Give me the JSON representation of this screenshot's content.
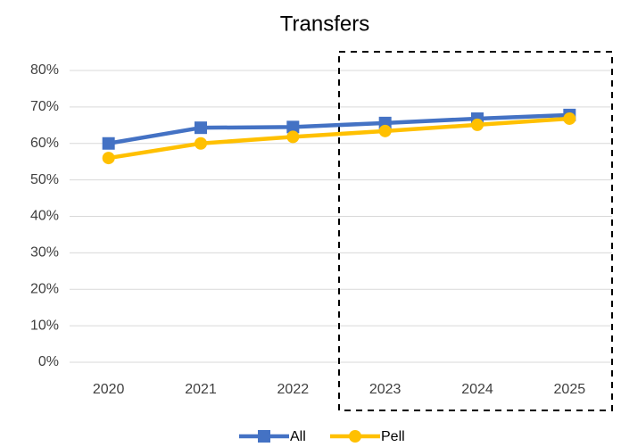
{
  "chart_data": {
    "type": "line",
    "title": "Transfers",
    "categories": [
      "2020",
      "2021",
      "2022",
      "2023",
      "2024",
      "2025"
    ],
    "series": [
      {
        "name": "All",
        "color": "#4472c4",
        "marker": "square",
        "values": [
          60,
          64.3,
          64.5,
          65.6,
          66.8,
          67.8
        ]
      },
      {
        "name": "Pell",
        "color": "#ffc000",
        "marker": "circle",
        "values": [
          56,
          60,
          61.8,
          63.4,
          65.1,
          66.8
        ]
      }
    ],
    "ylim": [
      0,
      80
    ],
    "yticks": [
      {
        "value": 0,
        "label": "0%"
      },
      {
        "value": 10,
        "label": "10%"
      },
      {
        "value": 20,
        "label": "20%"
      },
      {
        "value": 30,
        "label": "30%"
      },
      {
        "value": 40,
        "label": "40%"
      },
      {
        "value": 50,
        "label": "50%"
      },
      {
        "value": 60,
        "label": "60%"
      },
      {
        "value": 70,
        "label": "70%"
      },
      {
        "value": 80,
        "label": "80%"
      }
    ],
    "grid": true,
    "legend": "bottom"
  }
}
